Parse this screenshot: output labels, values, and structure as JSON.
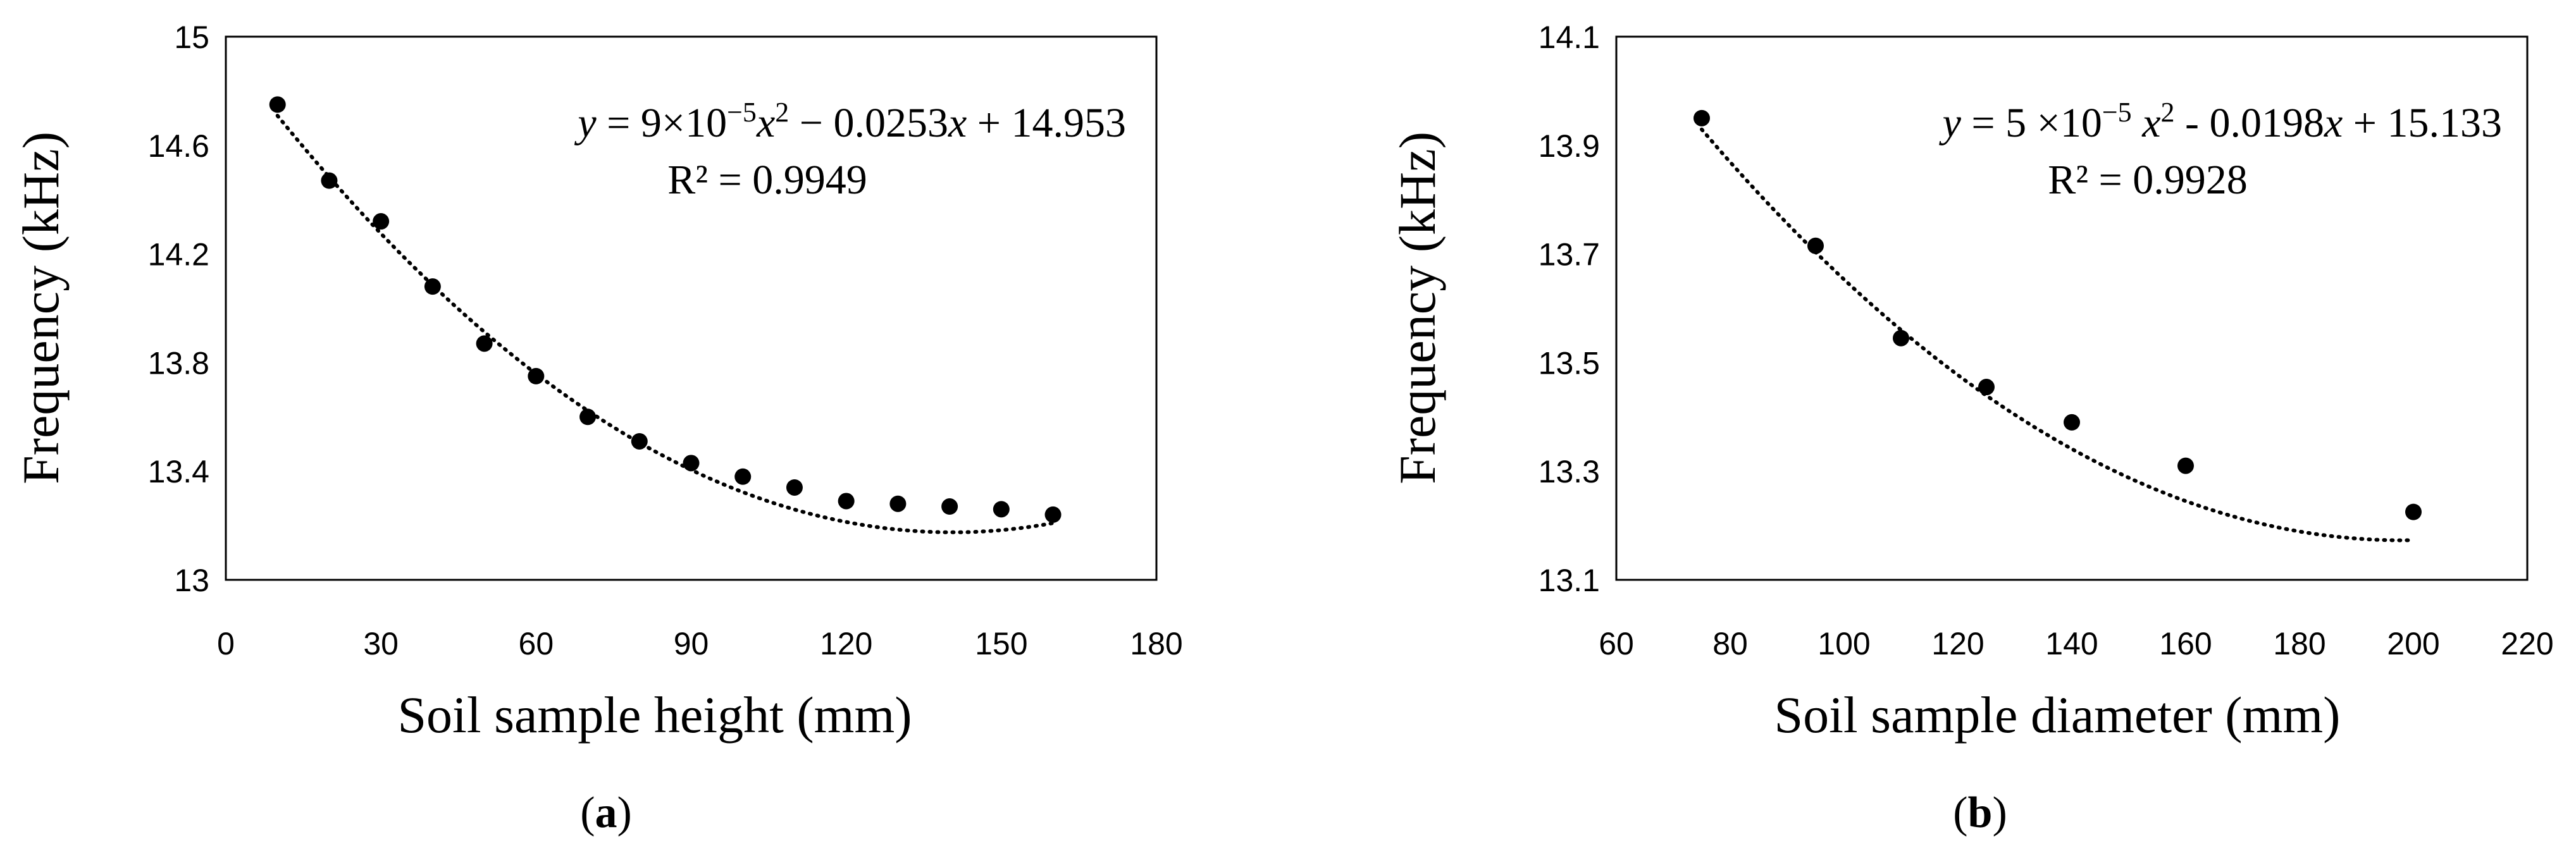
{
  "chart_data": [
    {
      "type": "scatter",
      "panel_label": "a",
      "xlabel": "Soil sample height (mm)",
      "ylabel": "Frequency (kHz)",
      "xlim": [
        0,
        180
      ],
      "ylim": [
        13,
        15
      ],
      "x_ticks": [
        "0",
        "30",
        "60",
        "90",
        "120",
        "150",
        "180"
      ],
      "y_ticks": [
        "13",
        "13.4",
        "13.8",
        "14.2",
        "14.6",
        "15"
      ],
      "grid": false,
      "series": [
        {
          "x": [
            10,
            20,
            30,
            40,
            50,
            60,
            70,
            80,
            90,
            100,
            110,
            120,
            130,
            140,
            150,
            160
          ],
          "y": [
            14.75,
            14.47,
            14.32,
            14.08,
            13.87,
            13.75,
            13.6,
            13.51,
            13.43,
            13.38,
            13.34,
            13.29,
            13.28,
            13.27,
            13.26,
            13.24
          ]
        }
      ],
      "trendline": {
        "type": "polynomial",
        "coefficients": [
          9e-05,
          -0.0253,
          14.953
        ],
        "x_range": [
          10,
          160
        ],
        "style": "dotted"
      },
      "equation": {
        "y": "y",
        "part1": " = 9×10",
        "exp1": "−5",
        "x": "x",
        "exp2": "2",
        "part2": " − 0.0253",
        "x2": "x",
        "part3": " + 14.953"
      },
      "r_squared": "R² = 0.9949"
    },
    {
      "type": "scatter",
      "panel_label": "b",
      "xlabel": "Soil sample diameter (mm)",
      "ylabel": "Frequency (kHz)",
      "xlim": [
        60,
        220
      ],
      "ylim": [
        13.1,
        14.1
      ],
      "x_ticks": [
        "60",
        "80",
        "100",
        "120",
        "140",
        "160",
        "180",
        "200",
        "220"
      ],
      "y_ticks": [
        "13.1",
        "13.3",
        "13.5",
        "13.7",
        "13.9",
        "14.1"
      ],
      "grid": false,
      "series": [
        {
          "x": [
            75,
            95,
            110,
            125,
            140,
            160,
            200
          ],
          "y": [
            13.95,
            13.715,
            13.545,
            13.455,
            13.39,
            13.31,
            13.225
          ]
        }
      ],
      "trendline": {
        "type": "polynomial",
        "coefficients": [
          5e-05,
          -0.0198,
          15.133
        ],
        "x_range": [
          75,
          200
        ],
        "style": "dotted"
      },
      "equation": {
        "y": "y",
        "part1": " = 5 ×10",
        "exp1": "−5",
        "x": " x",
        "exp2": "2",
        "part2": " - 0.0198",
        "x2": "x",
        "part3": " + 15.133"
      },
      "r_squared": "R² = 0.9928"
    }
  ]
}
